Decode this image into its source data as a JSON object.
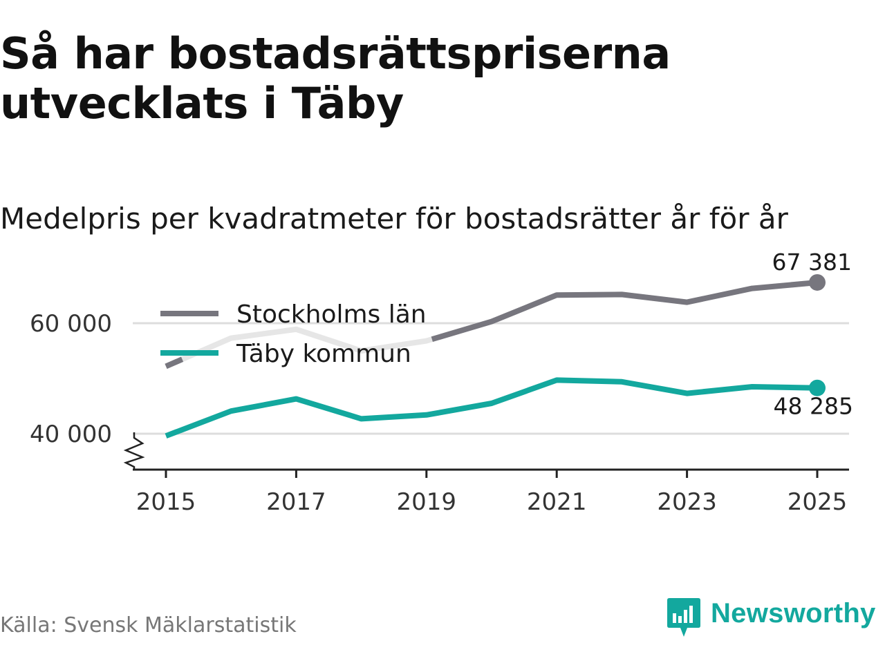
{
  "title": "Så har bostadsrättspriserna utvecklats i Täby",
  "subtitle": "Medelpris per kvadratmeter för bostadsrätter år för år",
  "source": "Källa: Svensk Mäklarstatistik",
  "brand": {
    "name": "Newsworthy",
    "icon": "newsworthy-logo-icon",
    "color": "#13a89e"
  },
  "chart_data": {
    "type": "line",
    "title": "Så har bostadsrättspriserna utvecklats i Täby",
    "subtitle": "Medelpris per kvadratmeter för bostadsrätter år för år",
    "xlabel": "",
    "ylabel": "",
    "x": [
      2015,
      2016,
      2017,
      2018,
      2019,
      2020,
      2021,
      2022,
      2023,
      2024,
      2025
    ],
    "x_ticks": [
      2015,
      2017,
      2019,
      2021,
      2023,
      2025
    ],
    "x_tick_labels": [
      "2015",
      "2017",
      "2019",
      "2021",
      "2023",
      "2025"
    ],
    "y_ticks": [
      40000,
      60000
    ],
    "y_tick_labels": [
      "40 000",
      "60 000"
    ],
    "ylim": [
      33500,
      71000
    ],
    "axis_break": true,
    "grid": true,
    "legend": "top-left",
    "series": [
      {
        "name": "Stockholms län",
        "color": "#77767e",
        "faded_color": "#e6e6e6",
        "values": [
          52200,
          57300,
          58900,
          55000,
          56800,
          60300,
          65100,
          65200,
          63800,
          66300,
          67381
        ],
        "end_label": "67 381"
      },
      {
        "name": "Täby kommun",
        "color": "#13a89e",
        "values": [
          39600,
          44100,
          46300,
          42700,
          43400,
          45500,
          49700,
          49400,
          47300,
          48500,
          48285
        ],
        "end_label": "48 285"
      }
    ]
  }
}
